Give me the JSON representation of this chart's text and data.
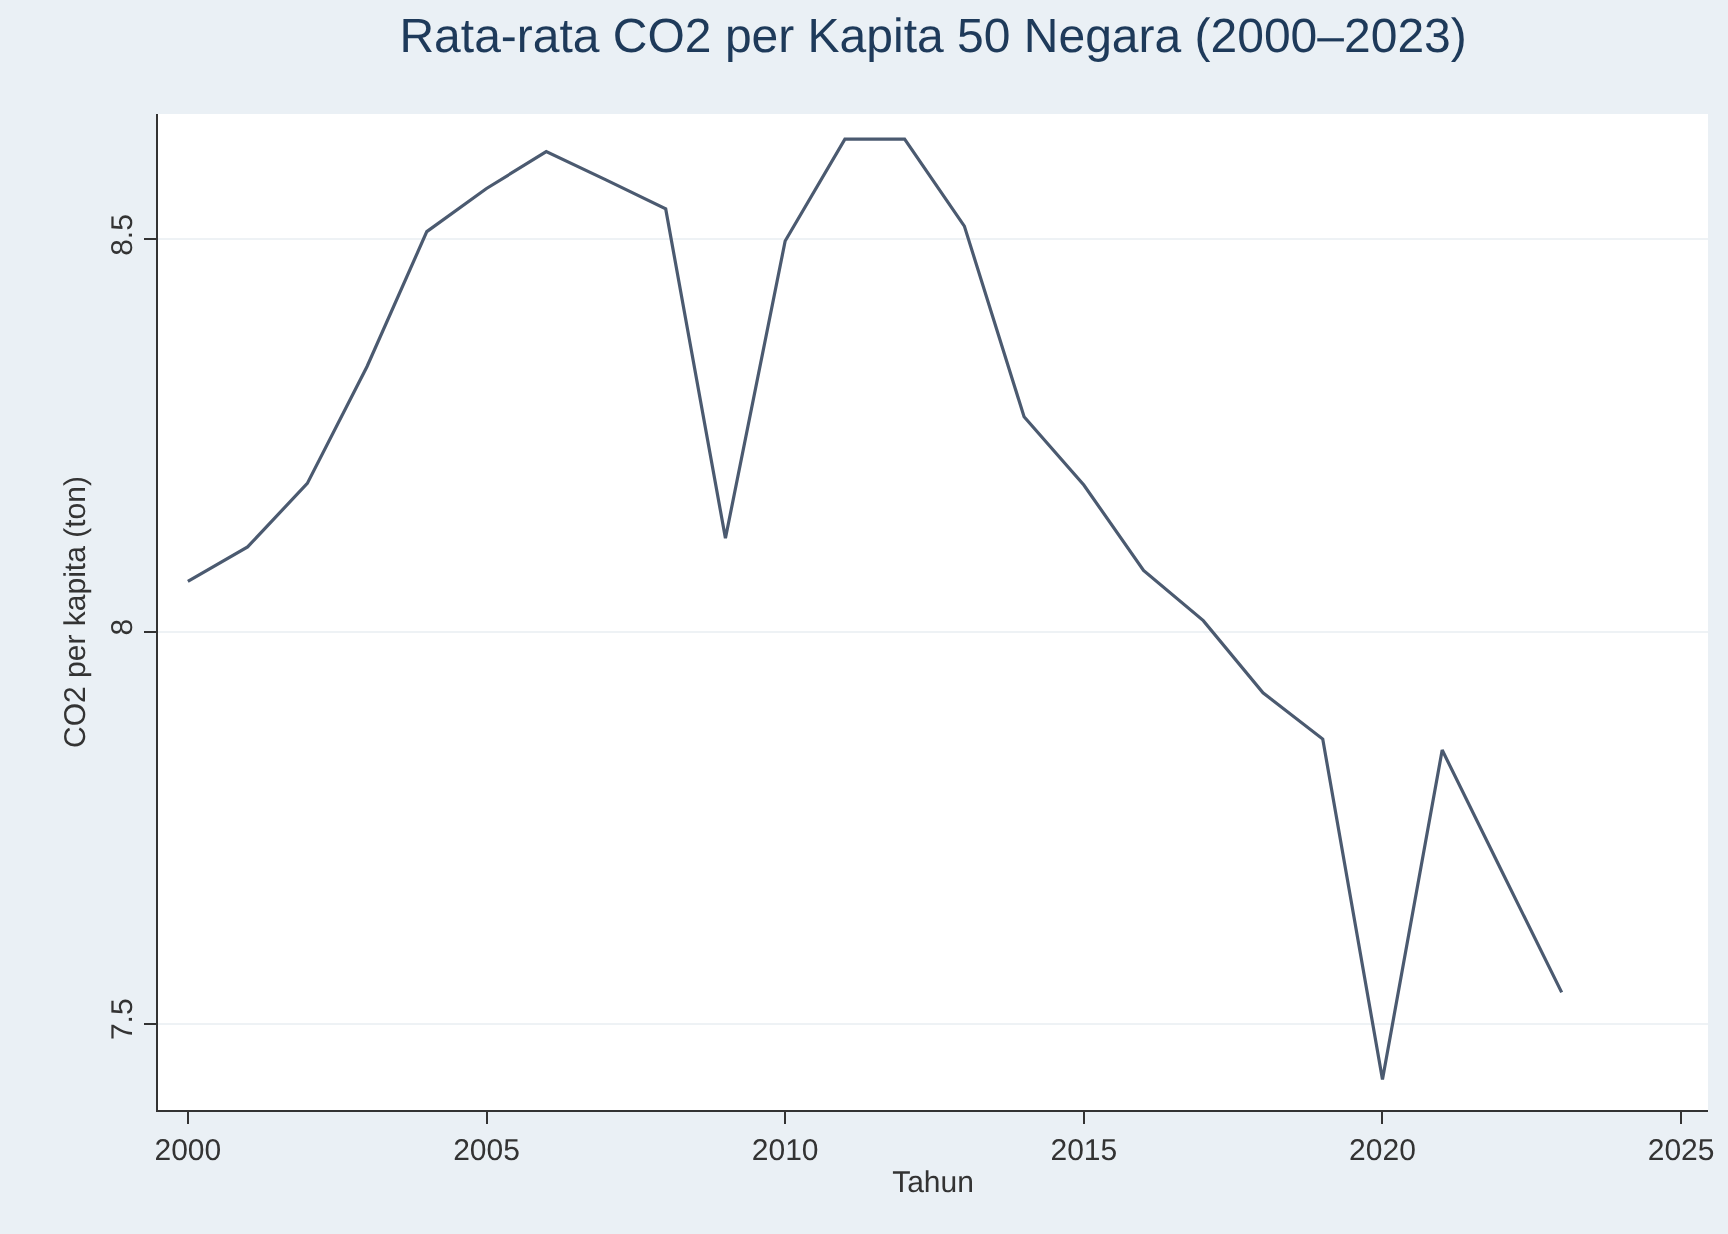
{
  "chart_data": {
    "type": "line",
    "title": "Rata-rata CO2 per Kapita 50 Negara (2000–2023)",
    "xlabel": "Tahun",
    "ylabel": "CO2 per kapita (ton)",
    "x": [
      2000,
      2001,
      2002,
      2003,
      2004,
      2005,
      2006,
      2007,
      2008,
      2009,
      2010,
      2011,
      2012,
      2013,
      2014,
      2015,
      2016,
      2017,
      2018,
      2019,
      2020,
      2021,
      2022,
      2023
    ],
    "series": [
      {
        "color": "#4b5a70",
        "values": [
          8.064,
          8.108,
          8.189,
          8.338,
          8.51,
          8.565,
          8.612,
          8.576,
          8.539,
          8.119,
          8.498,
          8.628,
          8.628,
          8.517,
          8.274,
          8.187,
          8.078,
          8.014,
          7.922,
          7.863,
          7.429,
          7.849,
          7.694,
          7.54
        ]
      }
    ],
    "xlim": [
      1999.5,
      2025.45
    ],
    "ylim": [
      7.39,
      8.66
    ],
    "xticks": [
      2000,
      2005,
      2010,
      2015,
      2020,
      2025
    ],
    "yticks": [
      7.5,
      8,
      8.5
    ],
    "grid": "y",
    "marker": "none",
    "line_style": "solid"
  }
}
